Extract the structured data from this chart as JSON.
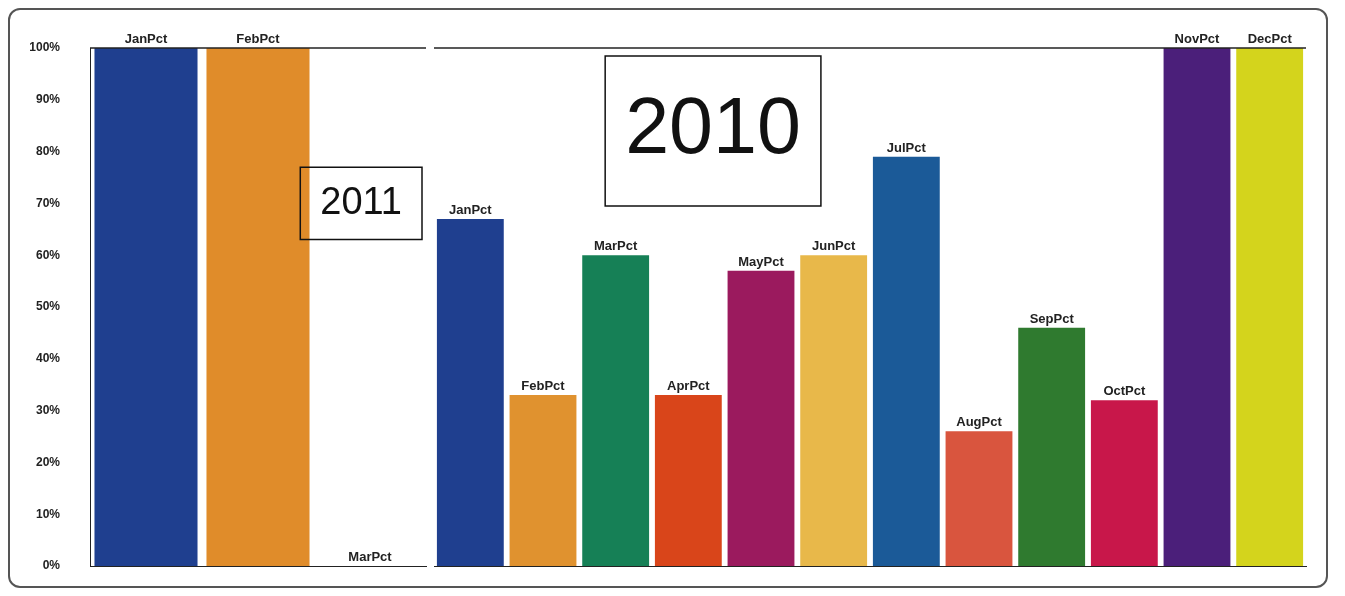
{
  "chart_data": [
    {
      "type": "bar",
      "categories": [
        "JanPct",
        "FebPct",
        "MarPct"
      ],
      "values": [
        100,
        100,
        0
      ],
      "colors": [
        "#1f3f8f",
        "#e08c2a",
        "#e08c2a"
      ],
      "ylim": [
        0,
        100
      ],
      "yticks": [
        {
          "value": 0,
          "label": "0%"
        },
        {
          "value": 10,
          "label": "10%"
        },
        {
          "value": 20,
          "label": "20%"
        },
        {
          "value": 30,
          "label": "30%"
        },
        {
          "value": 40,
          "label": "40%"
        },
        {
          "value": 50,
          "label": "50%"
        },
        {
          "value": 60,
          "label": "60%"
        },
        {
          "value": 70,
          "label": "70%"
        },
        {
          "value": 80,
          "label": "80%"
        },
        {
          "value": 90,
          "label": "90%"
        },
        {
          "value": 100,
          "label": "100%"
        }
      ],
      "grid": false,
      "annotations": [
        "2011"
      ]
    },
    {
      "type": "bar",
      "categories": [
        "JanPct",
        "FebPct",
        "MarPct",
        "AprPct",
        "MayPct",
        "JunPct",
        "JulPct",
        "AugPct",
        "SepPct",
        "OctPct",
        "NovPct",
        "DecPct"
      ],
      "values": [
        67,
        33,
        60,
        33,
        57,
        60,
        79,
        26,
        46,
        32,
        100,
        100
      ],
      "colors": [
        "#1f3f8f",
        "#e0922f",
        "#168056",
        "#d9451a",
        "#9b1a5e",
        "#e8b84a",
        "#1b5a98",
        "#d9553e",
        "#2f7a2f",
        "#c8174a",
        "#4b1f7a",
        "#d4d41c"
      ],
      "ylim": [
        0,
        100
      ],
      "tick_labels": "x",
      "grid": false,
      "annotations": [
        "2010"
      ]
    }
  ]
}
